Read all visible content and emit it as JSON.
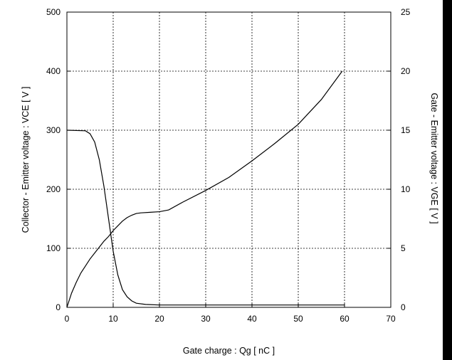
{
  "chart_data": {
    "type": "line",
    "title": "",
    "xlabel": "Gate charge  :  Qg  [ nC ]",
    "ylabel": "Collector - Emitter voltage  :  VCE  [ V ]",
    "y2label": "Gate - Emitter voltage  :  VGE  [ V ]",
    "xlim": [
      0,
      70
    ],
    "ylim": [
      0,
      500
    ],
    "y2lim": [
      0,
      25
    ],
    "xticks": [
      0,
      10,
      20,
      30,
      40,
      50,
      60,
      70
    ],
    "yticks": [
      0,
      100,
      200,
      300,
      400,
      500
    ],
    "y2ticks": [
      0,
      5,
      10,
      15,
      20,
      25
    ],
    "grid": true,
    "series": [
      {
        "axis": "left",
        "x": [
          0,
          4,
          5,
          6,
          7,
          8,
          9,
          10,
          11,
          12,
          13,
          14,
          15,
          17,
          20,
          30,
          40,
          50,
          60
        ],
        "y": [
          300,
          299,
          294,
          280,
          250,
          205,
          150,
          95,
          55,
          30,
          18,
          11,
          7,
          5,
          4,
          4,
          4,
          4,
          4
        ]
      },
      {
        "axis": "right",
        "x": [
          0,
          1,
          2,
          3,
          4,
          5,
          6,
          7,
          8,
          9,
          10,
          11,
          12,
          13,
          14,
          15,
          16,
          18,
          20,
          22,
          25,
          30,
          35,
          40,
          45,
          50,
          55,
          59.5
        ],
        "y": [
          0,
          1.2,
          2.1,
          2.9,
          3.5,
          4.1,
          4.6,
          5.1,
          5.6,
          6.0,
          6.5,
          6.9,
          7.3,
          7.6,
          7.8,
          7.95,
          8.0,
          8.05,
          8.1,
          8.25,
          8.9,
          9.9,
          11.0,
          12.4,
          13.9,
          15.5,
          17.6,
          20.0
        ]
      }
    ]
  }
}
